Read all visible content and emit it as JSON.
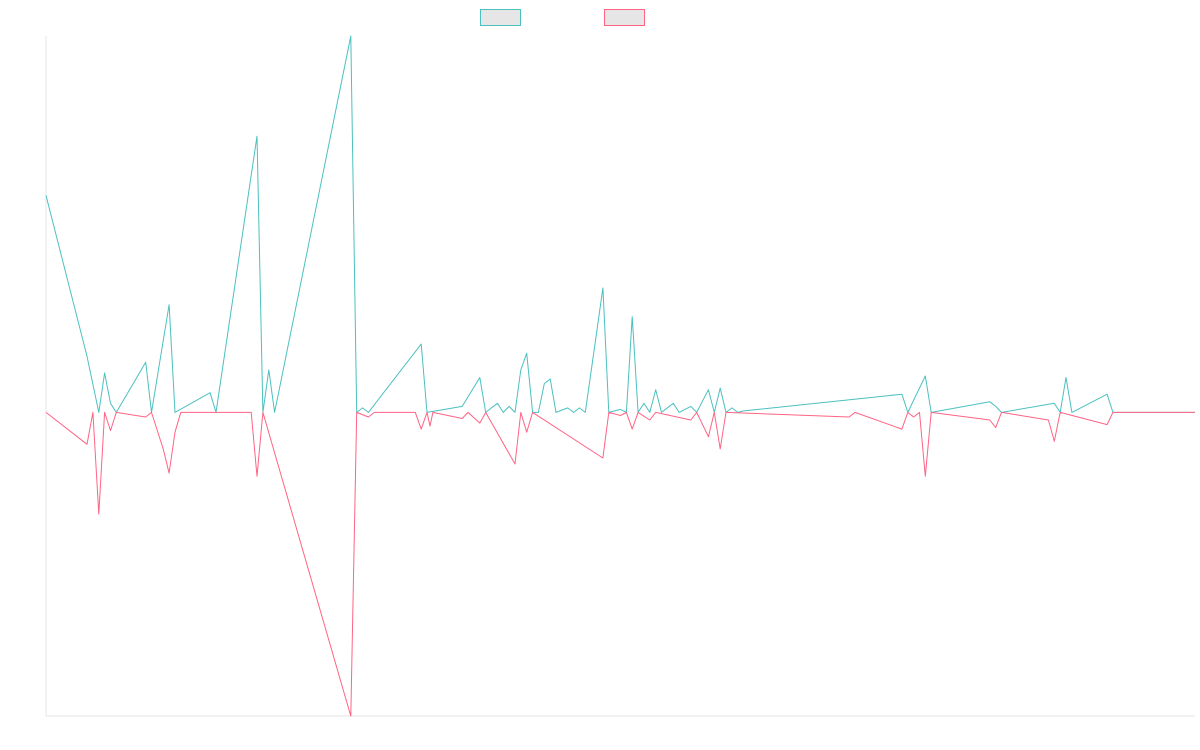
{
  "chart_data": {
    "type": "line",
    "title": "",
    "xlabel": "",
    "ylabel": "",
    "x_count": 197,
    "ylim": [
      -1.0,
      1.24
    ],
    "grid": false,
    "legend_position": "top-center",
    "series": [
      {
        "name": "",
        "color": "#4bc0c0",
        "points": [
          [
            0,
            0.715
          ],
          [
            7,
            0.185
          ],
          [
            9,
            0.0
          ],
          [
            10,
            0.13
          ],
          [
            11,
            0.03
          ],
          [
            12,
            0.0
          ],
          [
            17,
            0.165
          ],
          [
            18,
            0.0
          ],
          [
            21,
            0.355
          ],
          [
            22,
            0.0
          ],
          [
            28,
            0.065
          ],
          [
            29,
            0.0
          ],
          [
            36,
            0.91
          ],
          [
            37,
            0.0
          ],
          [
            38,
            0.14
          ],
          [
            39,
            0.0
          ],
          [
            52,
            1.24
          ],
          [
            53,
            0.0
          ],
          [
            54,
            0.015
          ],
          [
            55,
            0.0
          ],
          [
            64,
            0.225
          ],
          [
            65,
            0.0
          ],
          [
            71,
            0.02
          ],
          [
            74,
            0.115
          ],
          [
            75,
            0.0
          ],
          [
            77,
            0.03
          ],
          [
            78,
            0.0
          ],
          [
            79,
            0.02
          ],
          [
            80,
            0.0
          ],
          [
            81,
            0.14
          ],
          [
            82,
            0.195
          ],
          [
            83,
            0.0
          ],
          [
            84,
            0.0
          ],
          [
            85,
            0.095
          ],
          [
            86,
            0.11
          ],
          [
            87,
            0.0
          ],
          [
            89,
            0.015
          ],
          [
            90,
            0.0
          ],
          [
            91,
            0.015
          ],
          [
            92,
            0.0
          ],
          [
            95,
            0.41
          ],
          [
            96,
            0.0
          ],
          [
            98,
            0.01
          ],
          [
            99,
            0.0
          ],
          [
            100,
            0.315
          ],
          [
            101,
            0.0
          ],
          [
            102,
            0.03
          ],
          [
            103,
            0.0
          ],
          [
            104,
            0.075
          ],
          [
            105,
            0.0
          ],
          [
            107,
            0.03
          ],
          [
            108,
            0.0
          ],
          [
            110,
            0.02
          ],
          [
            111,
            0.0
          ],
          [
            113,
            0.075
          ],
          [
            114,
            0.0
          ],
          [
            115,
            0.08
          ],
          [
            116,
            0.0
          ],
          [
            117,
            0.015
          ],
          [
            118,
            0.0
          ],
          [
            119,
            0.005
          ],
          [
            146,
            0.06
          ],
          [
            147,
            0.0
          ],
          [
            150,
            0.12
          ],
          [
            151,
            0.0
          ],
          [
            161,
            0.035
          ],
          [
            162,
            0.02
          ],
          [
            163,
            0.0
          ],
          [
            172,
            0.03
          ],
          [
            173,
            0.0
          ],
          [
            174,
            0.115
          ],
          [
            175,
            0.0
          ],
          [
            181,
            0.06
          ],
          [
            182,
            0.0
          ],
          [
            196,
            0.0
          ]
        ]
      },
      {
        "name": "",
        "color": "#ff6384",
        "points": [
          [
            0,
            0.0
          ],
          [
            7,
            -0.105
          ],
          [
            8,
            0.0
          ],
          [
            9,
            -0.335
          ],
          [
            10,
            0.0
          ],
          [
            11,
            -0.06
          ],
          [
            12,
            0.0
          ],
          [
            17,
            -0.015
          ],
          [
            18,
            0.0
          ],
          [
            20,
            -0.12
          ],
          [
            21,
            -0.2
          ],
          [
            22,
            -0.065
          ],
          [
            23,
            0.0
          ],
          [
            35,
            0.0
          ],
          [
            36,
            -0.21
          ],
          [
            37,
            0.0
          ],
          [
            52,
            -1.0
          ],
          [
            53,
            0.0
          ],
          [
            55,
            -0.015
          ],
          [
            56,
            0.0
          ],
          [
            63,
            0.0
          ],
          [
            64,
            -0.055
          ],
          [
            65,
            0.0
          ],
          [
            65.5,
            -0.045
          ],
          [
            66,
            0.0
          ],
          [
            71,
            -0.02
          ],
          [
            72,
            0.0
          ],
          [
            74,
            -0.035
          ],
          [
            75,
            0.0
          ],
          [
            80,
            -0.17
          ],
          [
            81,
            0.0
          ],
          [
            82,
            -0.065
          ],
          [
            83,
            0.0
          ],
          [
            95,
            -0.15
          ],
          [
            96,
            0.0
          ],
          [
            98,
            -0.01
          ],
          [
            99,
            0.0
          ],
          [
            100,
            -0.055
          ],
          [
            101,
            0.0
          ],
          [
            103,
            -0.025
          ],
          [
            104,
            0.0
          ],
          [
            110,
            -0.025
          ],
          [
            111,
            0.0
          ],
          [
            113,
            -0.08
          ],
          [
            114,
            0.0
          ],
          [
            115,
            -0.12
          ],
          [
            116,
            0.0
          ],
          [
            137,
            -0.015
          ],
          [
            138,
            0.0
          ],
          [
            146,
            -0.055
          ],
          [
            147,
            0.0
          ],
          [
            148,
            -0.015
          ],
          [
            149,
            0.0
          ],
          [
            150,
            -0.21
          ],
          [
            151,
            0.0
          ],
          [
            161,
            -0.025
          ],
          [
            162,
            -0.05
          ],
          [
            163,
            0.0
          ],
          [
            171,
            -0.025
          ],
          [
            172,
            -0.095
          ],
          [
            173,
            0.0
          ],
          [
            181,
            -0.04
          ],
          [
            182,
            0.0
          ],
          [
            196,
            0.0
          ]
        ]
      }
    ]
  }
}
